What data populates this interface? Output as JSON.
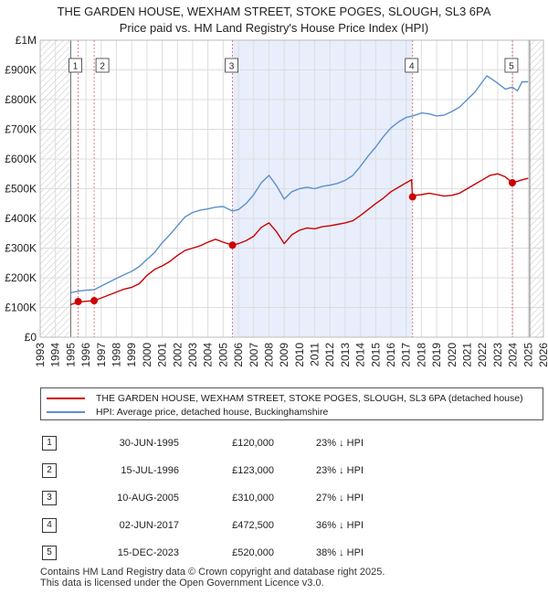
{
  "chart_data": {
    "type": "line",
    "title": "THE GARDEN HOUSE, WEXHAM STREET, STOKE POGES, SLOUGH, SL3 6PA",
    "subtitle": "Price paid vs. HM Land Registry's House Price Index (HPI)",
    "xlim": [
      1993,
      2026
    ],
    "ylim": [
      0,
      1000000
    ],
    "x_ticks": [
      "1993",
      "1994",
      "1995",
      "1996",
      "1997",
      "1998",
      "1999",
      "2000",
      "2001",
      "2002",
      "2003",
      "2004",
      "2005",
      "2006",
      "2007",
      "2008",
      "2009",
      "2010",
      "2011",
      "2012",
      "2013",
      "2014",
      "2015",
      "2016",
      "2017",
      "2018",
      "2019",
      "2020",
      "2021",
      "2022",
      "2023",
      "2024",
      "2025",
      "2026"
    ],
    "y_ticks": [
      {
        "value": 0,
        "label": "£0"
      },
      {
        "value": 100000,
        "label": "£100K"
      },
      {
        "value": 200000,
        "label": "£200K"
      },
      {
        "value": 300000,
        "label": "£300K"
      },
      {
        "value": 400000,
        "label": "£400K"
      },
      {
        "value": 500000,
        "label": "£500K"
      },
      {
        "value": 600000,
        "label": "£600K"
      },
      {
        "value": 700000,
        "label": "£700K"
      },
      {
        "value": 800000,
        "label": "£800K"
      },
      {
        "value": 900000,
        "label": "£900K"
      },
      {
        "value": 1000000,
        "label": "£1M"
      }
    ],
    "hatched_ranges": [
      [
        1993,
        1995.0
      ],
      [
        2025.1,
        2026
      ]
    ],
    "shaded_range": [
      2005.6,
      2017.4
    ],
    "series": [
      {
        "name": "THE GARDEN HOUSE, WEXHAM STREET, STOKE POGES, SLOUGH, SL3 6PA (detached house)",
        "color": "#cc0000",
        "x": [
          1995.0,
          1995.5,
          1996.0,
          1996.54,
          1997.0,
          1997.5,
          1998.0,
          1998.5,
          1999.0,
          1999.5,
          2000.0,
          2000.5,
          2001.0,
          2001.5,
          2002.0,
          2002.5,
          2003.0,
          2003.5,
          2004.0,
          2004.5,
          2005.0,
          2005.6,
          2006.0,
          2006.5,
          2007.0,
          2007.5,
          2008.0,
          2008.5,
          2009.0,
          2009.5,
          2010.0,
          2010.5,
          2011.0,
          2011.5,
          2012.0,
          2012.5,
          2013.0,
          2013.5,
          2014.0,
          2014.5,
          2015.0,
          2015.5,
          2016.0,
          2016.5,
          2017.0,
          2017.35,
          2017.42,
          2017.6,
          2018.0,
          2018.5,
          2019.0,
          2019.5,
          2020.0,
          2020.5,
          2021.0,
          2021.5,
          2022.0,
          2022.5,
          2023.0,
          2023.5,
          2023.95,
          2024.3,
          2024.6,
          2025.0
        ],
        "y": [
          110000,
          118000,
          121000,
          123000,
          132000,
          142000,
          152000,
          162000,
          168000,
          180000,
          208000,
          228000,
          240000,
          255000,
          275000,
          292000,
          300000,
          308000,
          320000,
          330000,
          320000,
          310000,
          315000,
          325000,
          340000,
          370000,
          385000,
          355000,
          315000,
          345000,
          360000,
          368000,
          365000,
          372000,
          375000,
          380000,
          385000,
          392000,
          410000,
          430000,
          450000,
          468000,
          490000,
          505000,
          520000,
          530000,
          472500,
          478000,
          480000,
          485000,
          480000,
          475000,
          478000,
          485000,
          500000,
          515000,
          530000,
          545000,
          550000,
          540000,
          520000,
          525000,
          530000,
          535000
        ]
      },
      {
        "name": "HPI: Average price, detached house, Buckinghamshire",
        "color": "#5b8fd0",
        "x": [
          1995.0,
          1995.5,
          1996.0,
          1996.54,
          1997.0,
          1997.5,
          1998.0,
          1998.5,
          1999.0,
          1999.5,
          2000.0,
          2000.5,
          2001.0,
          2001.5,
          2002.0,
          2002.5,
          2003.0,
          2003.5,
          2004.0,
          2004.5,
          2005.0,
          2005.6,
          2006.0,
          2006.5,
          2007.0,
          2007.5,
          2008.0,
          2008.5,
          2009.0,
          2009.5,
          2010.0,
          2010.5,
          2011.0,
          2011.5,
          2012.0,
          2012.5,
          2013.0,
          2013.5,
          2014.0,
          2014.5,
          2015.0,
          2015.5,
          2016.0,
          2016.5,
          2017.0,
          2017.42,
          2017.6,
          2018.0,
          2018.5,
          2019.0,
          2019.5,
          2020.0,
          2020.5,
          2021.0,
          2021.5,
          2022.0,
          2022.3,
          2022.6,
          2023.0,
          2023.5,
          2023.95,
          2024.3,
          2024.6,
          2025.0
        ],
        "y": [
          150000,
          155000,
          158000,
          160000,
          172000,
          185000,
          198000,
          210000,
          222000,
          238000,
          262000,
          285000,
          318000,
          345000,
          375000,
          405000,
          420000,
          428000,
          432000,
          438000,
          440000,
          425000,
          430000,
          450000,
          480000,
          520000,
          545000,
          510000,
          465000,
          490000,
          500000,
          505000,
          500000,
          508000,
          512000,
          518000,
          528000,
          545000,
          575000,
          610000,
          640000,
          675000,
          705000,
          725000,
          740000,
          745000,
          748000,
          755000,
          752000,
          745000,
          748000,
          760000,
          775000,
          800000,
          825000,
          860000,
          880000,
          870000,
          855000,
          835000,
          842000,
          830000,
          860000,
          860000
        ]
      }
    ],
    "sales": [
      {
        "n": "1",
        "x": 1995.49,
        "y": 120000
      },
      {
        "n": "2",
        "x": 1996.54,
        "y": 123000
      },
      {
        "n": "3",
        "x": 2005.61,
        "y": 310000
      },
      {
        "n": "4",
        "x": 2017.42,
        "y": 472500
      },
      {
        "n": "5",
        "x": 2023.96,
        "y": 520000
      }
    ]
  },
  "legend": {
    "property": "THE GARDEN HOUSE, WEXHAM STREET, STOKE POGES, SLOUGH, SL3 6PA (detached house)",
    "hpi": "HPI: Average price, detached house, Buckinghamshire"
  },
  "sales_table": [
    {
      "n": "1",
      "date": "30-JUN-1995",
      "price": "£120,000",
      "hpi": "23% ↓ HPI"
    },
    {
      "n": "2",
      "date": "15-JUL-1996",
      "price": "£123,000",
      "hpi": "23% ↓ HPI"
    },
    {
      "n": "3",
      "date": "10-AUG-2005",
      "price": "£310,000",
      "hpi": "27% ↓ HPI"
    },
    {
      "n": "4",
      "date": "02-JUN-2017",
      "price": "£472,500",
      "hpi": "36% ↓ HPI"
    },
    {
      "n": "5",
      "date": "15-DEC-2023",
      "price": "£520,000",
      "hpi": "38% ↓ HPI"
    }
  ],
  "footer": {
    "line1": "Contains HM Land Registry data © Crown copyright and database right 2025.",
    "line2": "This data is licensed under the Open Government Licence v3.0."
  }
}
